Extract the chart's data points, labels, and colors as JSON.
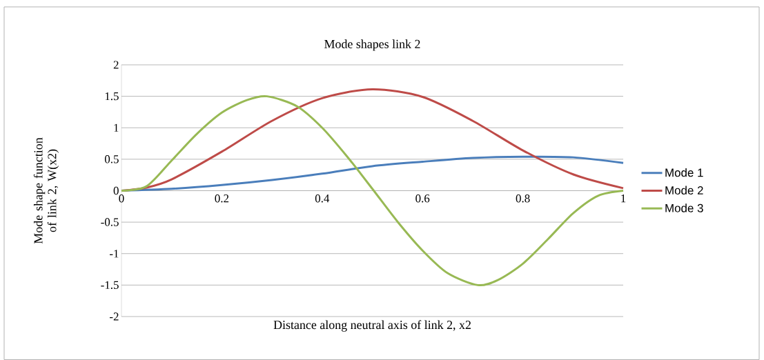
{
  "chart_data": {
    "type": "line",
    "title": "Mode shapes link 2",
    "xlabel": "Distance along neutral axis of link 2, x2",
    "ylabel": "Mode shape function of link 2, W(x2)",
    "xlim": [
      0,
      1
    ],
    "ylim": [
      -2,
      2
    ],
    "xticks": [
      0,
      0.2,
      0.4,
      0.6,
      0.8,
      1
    ],
    "yticks": [
      -2,
      -1.5,
      -1,
      -0.5,
      0,
      0.5,
      1,
      1.5,
      2
    ],
    "grid": "y",
    "legend": "right",
    "marker": "none",
    "line_style": "solid",
    "series": [
      {
        "name": "Mode 1",
        "color": "#4a7ebb",
        "x": [
          0,
          0.1,
          0.2,
          0.3,
          0.4,
          0.5,
          0.6,
          0.7,
          0.8,
          0.9,
          1
        ],
        "values": [
          0,
          0.03,
          0.09,
          0.17,
          0.27,
          0.39,
          0.46,
          0.52,
          0.54,
          0.53,
          0.44
        ]
      },
      {
        "name": "Mode 2",
        "color": "#be4b48",
        "x": [
          0,
          0.05,
          0.1,
          0.2,
          0.3,
          0.4,
          0.5,
          0.6,
          0.7,
          0.8,
          0.9,
          1
        ],
        "values": [
          0,
          0.05,
          0.18,
          0.62,
          1.11,
          1.47,
          1.61,
          1.49,
          1.11,
          0.64,
          0.26,
          0.04
        ]
      },
      {
        "name": "Mode 3",
        "color": "#98b954",
        "x": [
          0,
          0.05,
          0.1,
          0.15,
          0.2,
          0.25,
          0.29,
          0.35,
          0.4,
          0.45,
          0.5,
          0.55,
          0.6,
          0.65,
          0.71,
          0.75,
          0.8,
          0.85,
          0.9,
          0.95,
          1
        ],
        "values": [
          0,
          0.07,
          0.48,
          0.9,
          1.24,
          1.44,
          1.5,
          1.34,
          1.0,
          0.54,
          0.03,
          -0.49,
          -0.95,
          -1.31,
          -1.5,
          -1.42,
          -1.16,
          -0.77,
          -0.36,
          -0.08,
          0
        ]
      }
    ]
  }
}
